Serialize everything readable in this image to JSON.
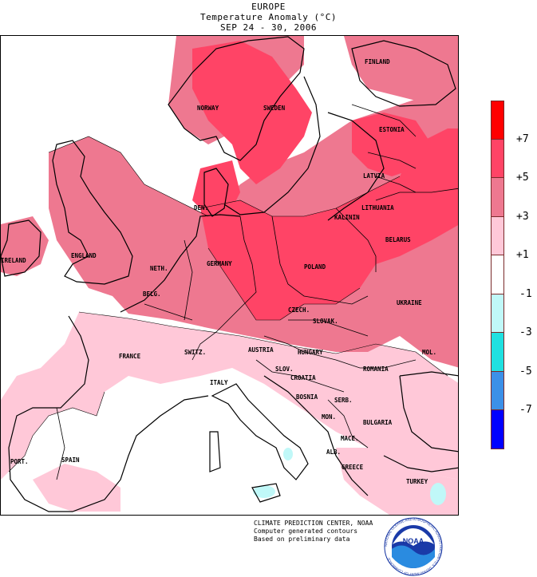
{
  "header": {
    "region": "EUROPE",
    "subtitle": "Temperature Anomaly (°C)",
    "period": "SEP 24 - 30, 2006"
  },
  "colors": {
    "gt7": "#ff0000",
    "5to7": "#ff4466",
    "3to5": "#ee7890",
    "1to3": "#ffc8d8",
    "neutral": "#ffffff",
    "m1to3": "#c0f8f8",
    "m3to5": "#20e0e0",
    "m5to7": "#3c90e8",
    "lt7": "#0000ff",
    "coastline": "#000000"
  },
  "legend": {
    "bins": [
      "gt7",
      "5to7",
      "3to5",
      "1to3",
      "neutral",
      "m1to3",
      "m3to5",
      "m5to7",
      "lt7"
    ],
    "ticks": [
      "+7",
      "+5",
      "+3",
      "+1",
      "-1",
      "-3",
      "-5",
      "-7"
    ]
  },
  "countries": {
    "finland": "FINLAND",
    "norway": "NORWAY",
    "sweden": "SWEDEN",
    "estonia": "ESTONIA",
    "latvia": "LATVIA",
    "lithuania": "LITHUANIA",
    "kaliningrad": "KALININ",
    "denmark": "DEN.",
    "belarus": "BELARUS",
    "ireland": "IRELAND",
    "england": "ENGLAND",
    "netherlands": "NETH.",
    "germany": "GERMANY",
    "poland": "POLAND",
    "belgium": "BELG.",
    "czech": "CZECH.",
    "slovakia": "SLOVAK.",
    "ukraine": "UKRAINE",
    "france": "FRANCE",
    "switzerland": "SWITZ.",
    "austria": "AUSTRIA",
    "hungary": "HUNGARY",
    "moldova": "MOL.",
    "slovenia": "SLOV.",
    "romania": "ROMANIA",
    "croatia": "CROATIA",
    "italy": "ITALY",
    "bosnia": "BOSNIA",
    "serbia": "SERB.",
    "montenegro": "MON.",
    "bulgaria": "BULGARIA",
    "macedonia": "MACE.",
    "portugal": "PORT.",
    "spain": "SPAIN",
    "albania": "ALB.",
    "greece": "GREECE",
    "turkey": "TURKEY"
  },
  "credits": {
    "line1": "CLIMATE PREDICTION CENTER, NOAA",
    "line2": "Computer generated contours",
    "line3": "Based on preliminary data"
  },
  "logo": {
    "text": "NOAA",
    "ring_text": "NATIONAL OCEANIC AND ATMOSPHERIC ADMINISTRATION • U.S. DEPARTMENT OF COMMERCE"
  }
}
